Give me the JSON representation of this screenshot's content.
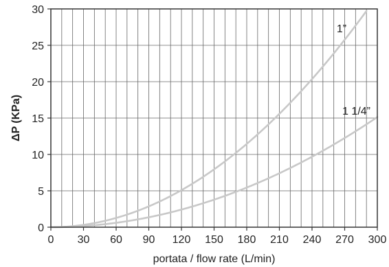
{
  "chart_data": {
    "type": "line",
    "xlabel": "portata / flow rate (L/min)",
    "ylabel": "ΔP (KPa)",
    "xlim": [
      0,
      300
    ],
    "ylim": [
      0,
      30
    ],
    "x_ticks": [
      0,
      30,
      60,
      90,
      120,
      150,
      180,
      210,
      240,
      270,
      300
    ],
    "y_ticks": [
      0,
      5,
      10,
      15,
      20,
      25,
      30
    ],
    "x_tick_labels": [
      "0",
      "30",
      "60",
      "90",
      "120",
      "150",
      "180",
      "210",
      "240",
      "270",
      "300"
    ],
    "y_tick_labels": [
      "0",
      "5",
      "10",
      "15",
      "20",
      "25",
      "30"
    ],
    "grid": true,
    "minor_x_step": 10,
    "series": [
      {
        "name": "1”",
        "color": "#c8c8c8",
        "x": [
          0,
          30,
          60,
          90,
          120,
          150,
          180,
          210,
          240,
          270,
          290
        ],
        "y": [
          0,
          0.33,
          1.3,
          2.9,
          5.2,
          8.1,
          11.7,
          15.6,
          20.3,
          25.4,
          29.9
        ]
      },
      {
        "name": "1 1/4”",
        "color": "#c8c8c8",
        "x": [
          0,
          30,
          60,
          90,
          120,
          150,
          180,
          210,
          240,
          270,
          300
        ],
        "y": [
          0,
          0.17,
          0.65,
          1.5,
          2.6,
          3.9,
          5.6,
          7.5,
          9.7,
          12.2,
          15.0
        ]
      }
    ]
  }
}
